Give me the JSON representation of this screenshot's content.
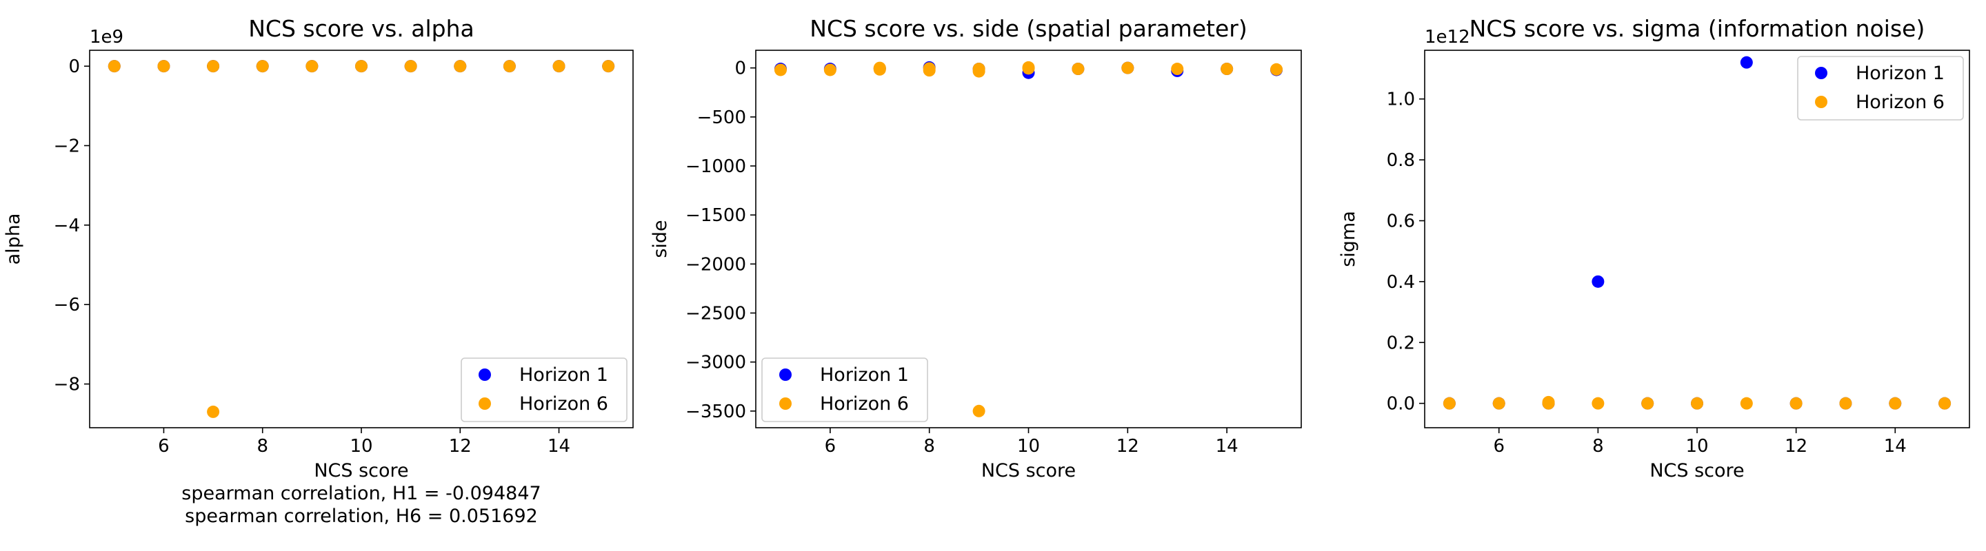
{
  "chart_data": [
    {
      "type": "scatter",
      "title": "NCS score vs. alpha",
      "xlabel": "NCS score",
      "ylabel": "alpha",
      "xlim": [
        4.5,
        15.5
      ],
      "ylim": [
        -9.1,
        0.4
      ],
      "offset_text": "1e9",
      "xticks": [
        6,
        8,
        10,
        12,
        14
      ],
      "yticks": [
        0,
        -2,
        -4,
        -6,
        -8
      ],
      "ytick_labels": [
        "0",
        "−2",
        "−4",
        "−6",
        "−8"
      ],
      "legend": "lower right",
      "grid": false,
      "annotation": [
        "spearman correlation, H1 = -0.094847",
        "spearman correlation, H6 = 0.051692"
      ],
      "series": [
        {
          "name": "Horizon 1",
          "color": "#0000ff",
          "points": [
            [
              5,
              0
            ],
            [
              6,
              0
            ],
            [
              7,
              0
            ],
            [
              8,
              0
            ],
            [
              9,
              0
            ],
            [
              10,
              0
            ],
            [
              11,
              0
            ],
            [
              12,
              0
            ],
            [
              13,
              0
            ],
            [
              14,
              0
            ],
            [
              15,
              0
            ]
          ]
        },
        {
          "name": "Horizon 6",
          "color": "#ffa500",
          "points": [
            [
              5,
              0
            ],
            [
              6,
              0
            ],
            [
              7,
              -8.7
            ],
            [
              7,
              0
            ],
            [
              8,
              0
            ],
            [
              9,
              0
            ],
            [
              10,
              0
            ],
            [
              11,
              0
            ],
            [
              12,
              0
            ],
            [
              13,
              0
            ],
            [
              14,
              0
            ],
            [
              15,
              0
            ]
          ]
        }
      ]
    },
    {
      "type": "scatter",
      "title": "NCS score vs. side (spatial parameter)",
      "xlabel": "NCS score",
      "ylabel": "side",
      "xlim": [
        4.5,
        15.5
      ],
      "ylim": [
        -3670,
        180
      ],
      "offset_text": "",
      "xticks": [
        6,
        8,
        10,
        12,
        14
      ],
      "yticks": [
        0,
        -500,
        -1000,
        -1500,
        -2000,
        -2500,
        -3000,
        -3500
      ],
      "ytick_labels": [
        "0",
        "−500",
        "−1000",
        "−1500",
        "−2000",
        "−2500",
        "−3000",
        "−3500"
      ],
      "legend": "lower left",
      "grid": false,
      "annotation": [],
      "series": [
        {
          "name": "Horizon 1",
          "color": "#0000ff",
          "points": [
            [
              5,
              -10
            ],
            [
              6,
              -10
            ],
            [
              7,
              -5
            ],
            [
              8,
              5
            ],
            [
              9,
              -10
            ],
            [
              10,
              -50
            ],
            [
              11,
              -10
            ],
            [
              12,
              0
            ],
            [
              13,
              -30
            ],
            [
              14,
              -10
            ],
            [
              15,
              -20
            ]
          ]
        },
        {
          "name": "Horizon 6",
          "color": "#ffa500",
          "points": [
            [
              5,
              -20
            ],
            [
              6,
              -20
            ],
            [
              7,
              -15
            ],
            [
              7,
              0
            ],
            [
              8,
              -5
            ],
            [
              8,
              -25
            ],
            [
              9,
              -35
            ],
            [
              9,
              -10
            ],
            [
              9,
              -3500
            ],
            [
              10,
              -5
            ],
            [
              10,
              5
            ],
            [
              11,
              -10
            ],
            [
              12,
              0
            ],
            [
              13,
              -10
            ],
            [
              14,
              -10
            ],
            [
              15,
              -15
            ]
          ]
        }
      ]
    },
    {
      "type": "scatter",
      "title": "NCS score vs. sigma (information noise)",
      "xlabel": "NCS score",
      "ylabel": "sigma",
      "xlim": [
        4.5,
        15.5
      ],
      "ylim": [
        -0.08,
        1.16
      ],
      "offset_text": "1e12",
      "xticks": [
        6,
        8,
        10,
        12,
        14
      ],
      "yticks": [
        0,
        0.2,
        0.4,
        0.6,
        0.8,
        1.0
      ],
      "ytick_labels": [
        "0.0",
        "0.2",
        "0.4",
        "0.6",
        "0.8",
        "1.0"
      ],
      "legend": "upper right",
      "grid": false,
      "annotation": [],
      "series": [
        {
          "name": "Horizon 1",
          "color": "#0000ff",
          "points": [
            [
              5,
              0
            ],
            [
              6,
              0
            ],
            [
              7,
              0
            ],
            [
              8,
              0.4
            ],
            [
              9,
              0
            ],
            [
              10,
              0
            ],
            [
              11,
              1.12
            ],
            [
              12,
              0
            ],
            [
              13,
              0
            ],
            [
              14,
              0
            ],
            [
              15,
              0
            ]
          ]
        },
        {
          "name": "Horizon 6",
          "color": "#ffa500",
          "points": [
            [
              5,
              0
            ],
            [
              6,
              0
            ],
            [
              7,
              0
            ],
            [
              7,
              0.004
            ],
            [
              8,
              0
            ],
            [
              9,
              0
            ],
            [
              10,
              0
            ],
            [
              11,
              0
            ],
            [
              12,
              0
            ],
            [
              13,
              0
            ],
            [
              14,
              0
            ],
            [
              15,
              0
            ]
          ]
        }
      ]
    }
  ]
}
